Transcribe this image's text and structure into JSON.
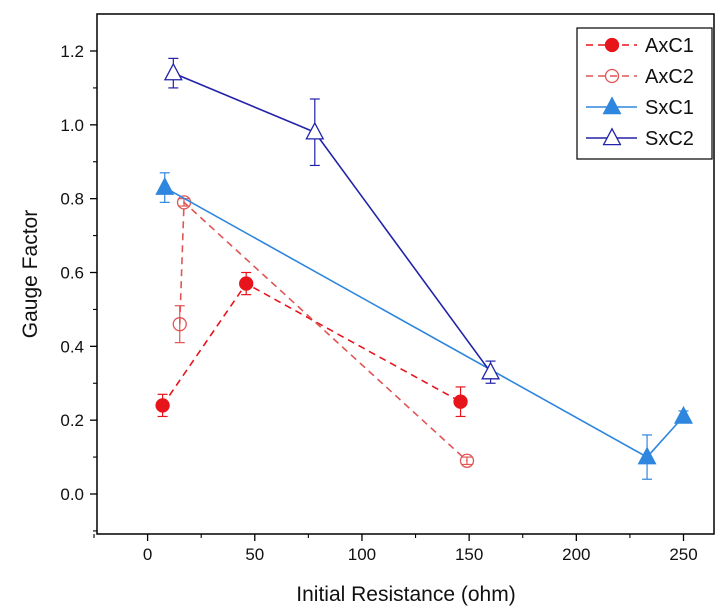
{
  "chart_data": {
    "type": "line",
    "title": "",
    "xlabel": "Initial Resistance (ohm)",
    "ylabel": "Gauge Factor",
    "xlim": [
      -20,
      262
    ],
    "ylim": [
      -0.12,
      1.3
    ],
    "xticks": [
      0,
      50,
      100,
      150,
      200,
      250
    ],
    "xtick_labels": [
      "0",
      "50",
      "100",
      "150",
      "200",
      "250"
    ],
    "yticks": [
      0.0,
      0.2,
      0.4,
      0.6,
      0.8,
      1.0,
      1.2
    ],
    "ytick_labels": [
      "0.0",
      "0.2",
      "0.4",
      "0.6",
      "0.8",
      "1.0",
      "1.2"
    ],
    "grid": false,
    "legend_position": "top-right",
    "series": [
      {
        "name": "AxC1",
        "color": "#e8141c",
        "line_style": "dashed",
        "marker": "circle",
        "filled": true,
        "points": [
          {
            "x": 7,
            "y": 0.24,
            "err": 0.03
          },
          {
            "x": 46,
            "y": 0.57,
            "err": 0.03
          },
          {
            "x": 146,
            "y": 0.25,
            "err": 0.04
          }
        ]
      },
      {
        "name": "AxC2",
        "color": "#e05555",
        "line_style": "dashed",
        "marker": "circle",
        "filled": false,
        "points": [
          {
            "x": 15,
            "y": 0.46,
            "err": 0.05
          },
          {
            "x": 17,
            "y": 0.79,
            "err": 0.01
          },
          {
            "x": 149,
            "y": 0.09,
            "err": 0.01
          }
        ]
      },
      {
        "name": "SxC1",
        "color": "#2e86de",
        "line_style": "solid",
        "marker": "triangle",
        "filled": true,
        "points": [
          {
            "x": 8,
            "y": 0.83,
            "err": 0.04
          },
          {
            "x": 233,
            "y": 0.1,
            "err": 0.06
          },
          {
            "x": 250,
            "y": 0.21,
            "err": 0.015
          }
        ]
      },
      {
        "name": "SxC2",
        "color": "#2222aa",
        "line_style": "solid",
        "marker": "triangle",
        "filled": false,
        "points": [
          {
            "x": 12,
            "y": 1.14,
            "err": 0.04
          },
          {
            "x": 78,
            "y": 0.98,
            "err": 0.09
          },
          {
            "x": 160,
            "y": 0.33,
            "err": 0.03
          }
        ]
      }
    ]
  }
}
